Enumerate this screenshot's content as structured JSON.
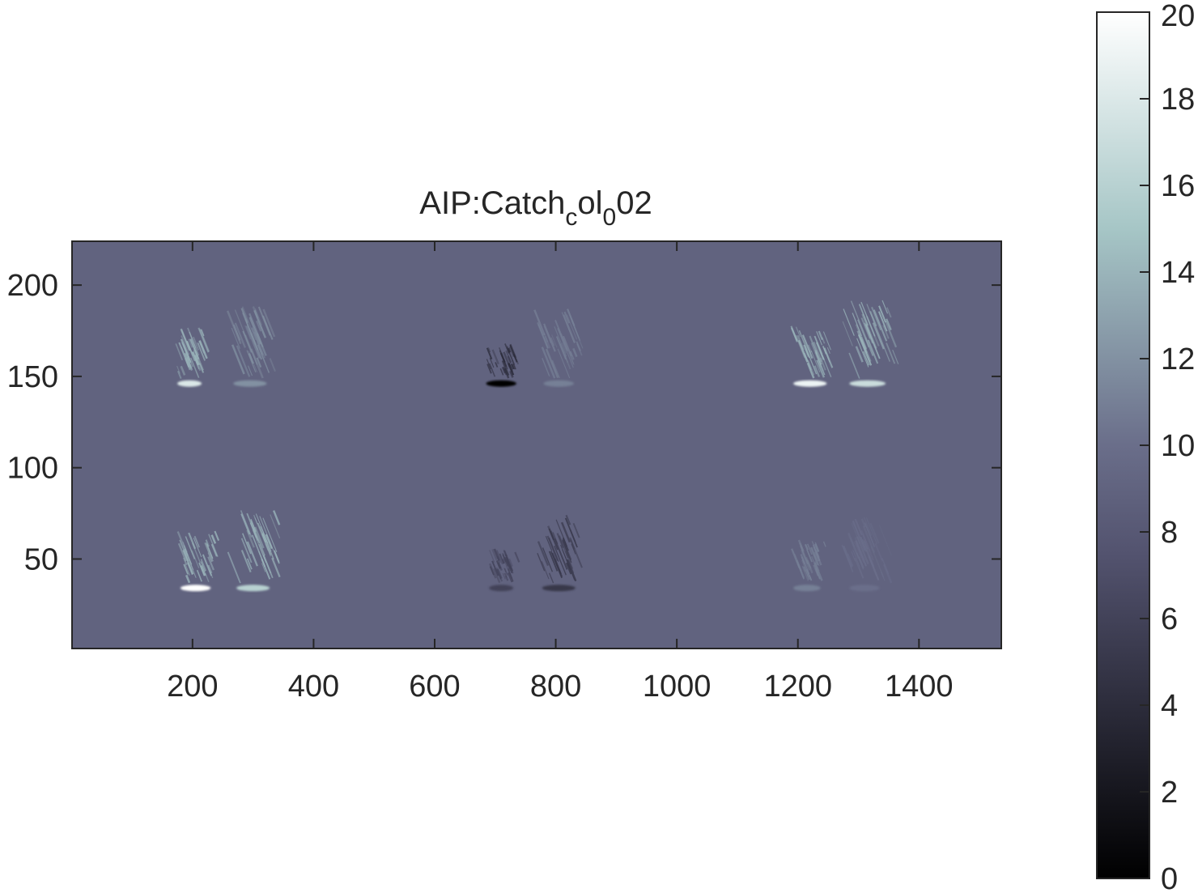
{
  "chart_data": {
    "type": "heatmap",
    "title": {
      "base": "AIP:Catch",
      "sub1": "c",
      "mid": "ol",
      "sub2": "0",
      "tail": "02"
    },
    "xlabel": "",
    "ylabel": "",
    "xlim": [
      1,
      1536
    ],
    "ylim": [
      1,
      224
    ],
    "xticks": [
      200,
      400,
      600,
      800,
      1000,
      1200,
      1400
    ],
    "xtick_labels": [
      "200",
      "400",
      "600",
      "800",
      "1000",
      "1200",
      "1400"
    ],
    "yticks": [
      50,
      100,
      150,
      200
    ],
    "ytick_labels": [
      "50",
      "100",
      "150",
      "200"
    ],
    "y_direction": "normal",
    "background_value": 9,
    "colormap": "bone",
    "colorbar": {
      "range": [
        0,
        20
      ],
      "ticks": [
        0,
        2,
        4,
        6,
        8,
        10,
        12,
        14,
        16,
        18,
        20
      ],
      "tick_labels": [
        "0",
        "2",
        "4",
        "6",
        "8",
        "10",
        "12",
        "14",
        "16",
        "18",
        "20"
      ]
    },
    "features": [
      {
        "name": "row-top-left-a",
        "x": 195,
        "y": 147,
        "width": 40,
        "height": 30,
        "peak": 18
      },
      {
        "name": "row-top-left-b",
        "x": 295,
        "y": 147,
        "width": 55,
        "height": 42,
        "peak": 12
      },
      {
        "name": "row-top-mid-a",
        "x": 710,
        "y": 147,
        "width": 50,
        "height": 20,
        "peak": 0
      },
      {
        "name": "row-top-mid-b",
        "x": 805,
        "y": 147,
        "width": 50,
        "height": 40,
        "peak": 11
      },
      {
        "name": "row-top-right-a",
        "x": 1220,
        "y": 147,
        "width": 55,
        "height": 30,
        "peak": 19
      },
      {
        "name": "row-top-right-b",
        "x": 1315,
        "y": 147,
        "width": 60,
        "height": 45,
        "peak": 17
      },
      {
        "name": "row-bot-left-a",
        "x": 205,
        "y": 35,
        "width": 50,
        "height": 30,
        "peak": 20
      },
      {
        "name": "row-bot-left-b",
        "x": 300,
        "y": 35,
        "width": 55,
        "height": 42,
        "peak": 16
      },
      {
        "name": "row-bot-mid-a",
        "x": 710,
        "y": 35,
        "width": 40,
        "height": 20,
        "peak": 6
      },
      {
        "name": "row-bot-mid-b",
        "x": 805,
        "y": 35,
        "width": 55,
        "height": 38,
        "peak": 5
      },
      {
        "name": "row-bot-right-a",
        "x": 1215,
        "y": 35,
        "width": 45,
        "height": 25,
        "peak": 11
      },
      {
        "name": "row-bot-right-b",
        "x": 1310,
        "y": 35,
        "width": 50,
        "height": 38,
        "peak": 10
      }
    ]
  }
}
